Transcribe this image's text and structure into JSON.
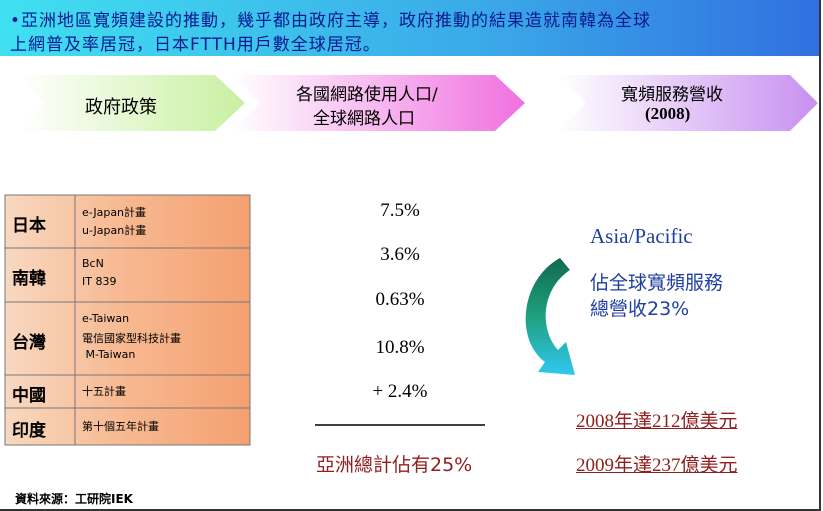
{
  "header": {
    "lines": [
      "•亞洲地區寬頻建設的推動，幾乎都由政府主導，政府推動的結果造就南韓為全球",
      "上網普及率居冠，日本FTTH用戶數全球居冠。"
    ]
  },
  "arrows": [
    {
      "lines": [
        "政府政策"
      ]
    },
    {
      "lines": [
        "各國網路使用人口/",
        "全球網路人口"
      ]
    },
    {
      "lines": [
        "寬頻服務營收",
        "(2008)"
      ]
    }
  ],
  "table": {
    "rows": [
      {
        "country": "日本",
        "plans": [
          "e-Japan計畫",
          "u-Japan計畫"
        ],
        "share": "7.5%"
      },
      {
        "country": "南韓",
        "plans": [
          "BcN",
          "IT 839"
        ],
        "share": "3.6%"
      },
      {
        "country": "台灣",
        "plans": [
          "e-Taiwan",
          "電信國家型科技計畫",
          " M-Taiwan"
        ],
        "share": "0.63%"
      },
      {
        "country": "中國",
        "plans": [
          "十五計畫"
        ],
        "share": "10.8%"
      },
      {
        "country": "印度",
        "plans": [
          "第十個五年計畫"
        ],
        "share": "+ 2.4%"
      }
    ]
  },
  "total": "亞洲總計佔有25%",
  "revenue": {
    "region": "Asia/Pacific",
    "lines": [
      "佔全球寬頻服務",
      "總營收23%"
    ],
    "years": [
      "2008年達212億美元",
      "2009年達237億美元"
    ]
  },
  "source": "資料來源：工研院IEK"
}
